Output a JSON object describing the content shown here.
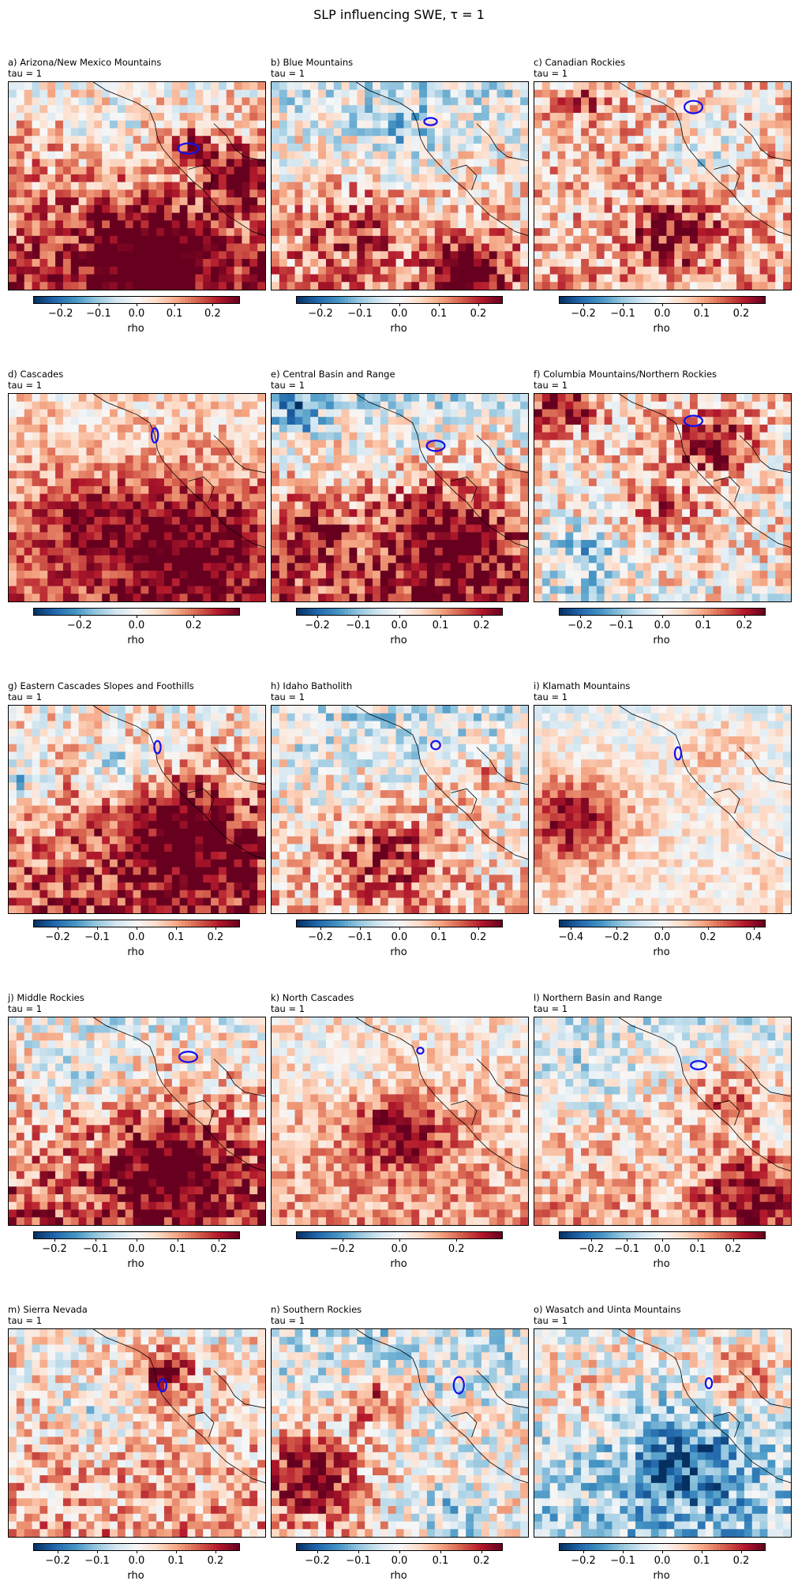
{
  "figure": {
    "title": "SLP influencing SWE, τ = 1"
  },
  "chart_data": [
    {
      "type": "heatmap",
      "title": "a) Arizona/New Mexico Mountains",
      "subtitle": "tau = 1",
      "colorbar": {
        "label": "rho",
        "cmap": "RdBu_r",
        "vmin": -0.27,
        "vmax": 0.27,
        "ticks": [
          -0.2,
          -0.1,
          0.0,
          0.1,
          0.2
        ],
        "tick_labels": [
          "−0.2",
          "−0.1",
          "0.0",
          "0.1",
          "0.2"
        ]
      },
      "field": {
        "nx": 33,
        "ny": 27,
        "seed": 11,
        "bias": 0.1,
        "north_bias": -0.08,
        "south_bias": 0.12,
        "blobs": [
          {
            "cx": 0.55,
            "cy": 0.85,
            "r": 0.22,
            "v": 0.22
          },
          {
            "cx": 0.9,
            "cy": 0.45,
            "r": 0.12,
            "v": 0.22
          },
          {
            "cx": 0.7,
            "cy": 0.3,
            "r": 0.1,
            "v": 0.12
          },
          {
            "cx": 0.4,
            "cy": 0.25,
            "r": 0.15,
            "v": -0.08
          }
        ]
      },
      "region_outline": {
        "cx": 0.7,
        "cy": 0.32,
        "w": 0.08,
        "h": 0.05
      }
    },
    {
      "type": "heatmap",
      "title": "b) Blue Mountains",
      "subtitle": "tau = 1",
      "colorbar": {
        "label": "rho",
        "cmap": "RdBu_r",
        "vmin": -0.26,
        "vmax": 0.26,
        "ticks": [
          -0.2,
          -0.1,
          0.0,
          0.1,
          0.2
        ],
        "tick_labels": [
          "−0.2",
          "−0.1",
          "0.0",
          "0.1",
          "0.2"
        ]
      },
      "field": {
        "nx": 33,
        "ny": 27,
        "seed": 23,
        "bias": 0.02,
        "north_bias": -0.06,
        "south_bias": 0.1,
        "blobs": [
          {
            "cx": 0.77,
            "cy": 0.9,
            "r": 0.14,
            "v": 0.24
          },
          {
            "cx": 0.3,
            "cy": 0.7,
            "r": 0.2,
            "v": 0.1
          },
          {
            "cx": 0.5,
            "cy": 0.25,
            "r": 0.15,
            "v": -0.08
          }
        ]
      },
      "region_outline": {
        "cx": 0.62,
        "cy": 0.19,
        "w": 0.05,
        "h": 0.035
      }
    },
    {
      "type": "heatmap",
      "title": "c) Canadian Rockies",
      "subtitle": "tau = 1",
      "colorbar": {
        "label": "rho",
        "cmap": "RdBu_r",
        "vmin": -0.26,
        "vmax": 0.26,
        "ticks": [
          -0.2,
          -0.1,
          0.0,
          0.1,
          0.2
        ],
        "tick_labels": [
          "−0.2",
          "−0.1",
          "0.0",
          "0.1",
          "0.2"
        ]
      },
      "field": {
        "nx": 33,
        "ny": 27,
        "seed": 37,
        "bias": 0.01,
        "north_bias": 0.04,
        "south_bias": 0.08,
        "blobs": [
          {
            "cx": 0.55,
            "cy": 0.72,
            "r": 0.18,
            "v": 0.14
          },
          {
            "cx": 0.65,
            "cy": 0.35,
            "r": 0.15,
            "v": -0.1
          },
          {
            "cx": 0.2,
            "cy": 0.1,
            "r": 0.12,
            "v": 0.1
          }
        ]
      },
      "region_outline": {
        "cx": 0.62,
        "cy": 0.12,
        "w": 0.07,
        "h": 0.06
      }
    },
    {
      "type": "heatmap",
      "title": "d) Cascades",
      "subtitle": "tau = 1",
      "colorbar": {
        "label": "rho",
        "cmap": "RdBu_r",
        "vmin": -0.36,
        "vmax": 0.36,
        "ticks": [
          -0.2,
          0.0,
          0.2
        ],
        "tick_labels": [
          "−0.2",
          "0.0",
          "0.2"
        ]
      },
      "field": {
        "nx": 33,
        "ny": 27,
        "seed": 41,
        "bias": 0.07,
        "north_bias": -0.02,
        "south_bias": 0.16,
        "blobs": [
          {
            "cx": 0.7,
            "cy": 0.72,
            "r": 0.3,
            "v": 0.22
          },
          {
            "cx": 0.3,
            "cy": 0.6,
            "r": 0.2,
            "v": 0.14
          }
        ]
      },
      "region_outline": {
        "cx": 0.57,
        "cy": 0.2,
        "w": 0.025,
        "h": 0.07
      }
    },
    {
      "type": "heatmap",
      "title": "e) Central Basin and Range",
      "subtitle": "tau = 1",
      "colorbar": {
        "label": "rho",
        "cmap": "RdBu_r",
        "vmin": -0.25,
        "vmax": 0.25,
        "ticks": [
          -0.2,
          -0.1,
          0.0,
          0.1,
          0.2
        ],
        "tick_labels": [
          "−0.2",
          "−0.1",
          "0.0",
          "0.1",
          "0.2"
        ]
      },
      "field": {
        "nx": 33,
        "ny": 27,
        "seed": 53,
        "bias": 0.04,
        "north_bias": -0.08,
        "south_bias": 0.14,
        "blobs": [
          {
            "cx": 0.7,
            "cy": 0.68,
            "r": 0.25,
            "v": 0.18
          },
          {
            "cx": 0.15,
            "cy": 0.65,
            "r": 0.15,
            "v": 0.12
          },
          {
            "cx": 0.1,
            "cy": 0.1,
            "r": 0.1,
            "v": -0.14
          }
        ]
      },
      "region_outline": {
        "cx": 0.64,
        "cy": 0.25,
        "w": 0.07,
        "h": 0.05
      }
    },
    {
      "type": "heatmap",
      "title": "f) Columbia Mountains/Northern Rockies",
      "subtitle": "tau = 1",
      "colorbar": {
        "label": "rho",
        "cmap": "RdBu_r",
        "vmin": -0.25,
        "vmax": 0.25,
        "ticks": [
          -0.2,
          -0.1,
          0.0,
          0.1,
          0.2
        ],
        "tick_labels": [
          "−0.2",
          "−0.1",
          "0.0",
          "0.1",
          "0.2"
        ]
      },
      "field": {
        "nx": 33,
        "ny": 27,
        "seed": 67,
        "bias": 0.0,
        "north_bias": 0.06,
        "south_bias": 0.02,
        "blobs": [
          {
            "cx": 0.1,
            "cy": 0.05,
            "r": 0.12,
            "v": 0.22
          },
          {
            "cx": 0.7,
            "cy": 0.25,
            "r": 0.15,
            "v": 0.18
          },
          {
            "cx": 0.5,
            "cy": 0.55,
            "r": 0.15,
            "v": 0.1
          },
          {
            "cx": 0.2,
            "cy": 0.8,
            "r": 0.18,
            "v": -0.12
          }
        ]
      },
      "region_outline": {
        "cx": 0.62,
        "cy": 0.13,
        "w": 0.07,
        "h": 0.05
      }
    },
    {
      "type": "heatmap",
      "title": "g) Eastern Cascades Slopes and Foothills",
      "subtitle": "tau = 1",
      "colorbar": {
        "label": "rho",
        "cmap": "RdBu_r",
        "vmin": -0.26,
        "vmax": 0.26,
        "ticks": [
          -0.2,
          -0.1,
          0.0,
          0.1,
          0.2
        ],
        "tick_labels": [
          "−0.2",
          "−0.1",
          "0.0",
          "0.1",
          "0.2"
        ]
      },
      "field": {
        "nx": 33,
        "ny": 27,
        "seed": 79,
        "bias": 0.06,
        "north_bias": -0.04,
        "south_bias": 0.12,
        "blobs": [
          {
            "cx": 0.7,
            "cy": 0.65,
            "r": 0.28,
            "v": 0.2
          },
          {
            "cx": 0.45,
            "cy": 0.3,
            "r": 0.12,
            "v": -0.14
          },
          {
            "cx": 0.05,
            "cy": 0.35,
            "r": 0.1,
            "v": -0.14
          }
        ]
      },
      "region_outline": {
        "cx": 0.58,
        "cy": 0.2,
        "w": 0.025,
        "h": 0.06
      }
    },
    {
      "type": "heatmap",
      "title": "h) Idaho Batholith",
      "subtitle": "tau = 1",
      "colorbar": {
        "label": "rho",
        "cmap": "RdBu_r",
        "vmin": -0.26,
        "vmax": 0.26,
        "ticks": [
          -0.2,
          -0.1,
          0.0,
          0.1,
          0.2
        ],
        "tick_labels": [
          "−0.2",
          "−0.1",
          "0.0",
          "0.1",
          "0.2"
        ]
      },
      "field": {
        "nx": 33,
        "ny": 27,
        "seed": 83,
        "bias": 0.01,
        "north_bias": -0.05,
        "south_bias": 0.06,
        "blobs": [
          {
            "cx": 0.45,
            "cy": 0.72,
            "r": 0.22,
            "v": 0.16
          },
          {
            "cx": 0.8,
            "cy": 0.35,
            "r": 0.12,
            "v": 0.12
          }
        ]
      },
      "region_outline": {
        "cx": 0.64,
        "cy": 0.19,
        "w": 0.035,
        "h": 0.04
      }
    },
    {
      "type": "heatmap",
      "title": "i) Klamath Mountains",
      "subtitle": "tau = 1",
      "colorbar": {
        "label": "rho",
        "cmap": "RdBu_r",
        "vmin": -0.45,
        "vmax": 0.45,
        "ticks": [
          -0.4,
          -0.2,
          0.0,
          0.2,
          0.4
        ],
        "tick_labels": [
          "−0.4",
          "−0.2",
          "0.0",
          "0.2",
          "0.4"
        ]
      },
      "field": {
        "nx": 33,
        "ny": 27,
        "seed": 97,
        "bias": 0.02,
        "north_bias": -0.04,
        "south_bias": 0.04,
        "blobs": [
          {
            "cx": 0.15,
            "cy": 0.55,
            "r": 0.22,
            "v": 0.38
          },
          {
            "cx": 0.7,
            "cy": 0.2,
            "r": 0.15,
            "v": 0.12
          }
        ]
      },
      "region_outline": {
        "cx": 0.56,
        "cy": 0.23,
        "w": 0.025,
        "h": 0.06
      }
    },
    {
      "type": "heatmap",
      "title": "j) Middle Rockies",
      "subtitle": "tau = 1",
      "colorbar": {
        "label": "rho",
        "cmap": "RdBu_r",
        "vmin": -0.25,
        "vmax": 0.25,
        "ticks": [
          -0.2,
          -0.1,
          0.0,
          0.1,
          0.2
        ],
        "tick_labels": [
          "−0.2",
          "−0.1",
          "0.0",
          "0.1",
          "0.2"
        ]
      },
      "field": {
        "nx": 33,
        "ny": 27,
        "seed": 101,
        "bias": 0.05,
        "north_bias": -0.06,
        "south_bias": 0.12,
        "blobs": [
          {
            "cx": 0.65,
            "cy": 0.72,
            "r": 0.25,
            "v": 0.2
          },
          {
            "cx": 0.3,
            "cy": 0.3,
            "r": 0.15,
            "v": -0.06
          }
        ]
      },
      "region_outline": {
        "cx": 0.7,
        "cy": 0.19,
        "w": 0.07,
        "h": 0.05
      }
    },
    {
      "type": "heatmap",
      "title": "k) North Cascades",
      "subtitle": "tau = 1",
      "colorbar": {
        "label": "rho",
        "cmap": "RdBu_r",
        "vmin": -0.36,
        "vmax": 0.36,
        "ticks": [
          -0.2,
          0.0,
          0.2
        ],
        "tick_labels": [
          "−0.2",
          "0.0",
          "0.2"
        ]
      },
      "field": {
        "nx": 33,
        "ny": 27,
        "seed": 113,
        "bias": 0.05,
        "north_bias": -0.02,
        "south_bias": 0.1,
        "blobs": [
          {
            "cx": 0.5,
            "cy": 0.55,
            "r": 0.2,
            "v": 0.24
          },
          {
            "cx": 0.3,
            "cy": 0.25,
            "r": 0.15,
            "v": -0.08
          }
        ]
      },
      "region_outline": {
        "cx": 0.58,
        "cy": 0.16,
        "w": 0.025,
        "h": 0.03
      }
    },
    {
      "type": "heatmap",
      "title": "l) Northern Basin and Range",
      "subtitle": "tau = 1",
      "colorbar": {
        "label": "rho",
        "cmap": "RdBu_r",
        "vmin": -0.29,
        "vmax": 0.29,
        "ticks": [
          -0.2,
          -0.1,
          0.0,
          0.1,
          0.2
        ],
        "tick_labels": [
          "−0.2",
          "−0.1",
          "0.0",
          "0.1",
          "0.2"
        ]
      },
      "field": {
        "nx": 33,
        "ny": 27,
        "seed": 127,
        "bias": 0.03,
        "north_bias": -0.06,
        "south_bias": 0.08,
        "blobs": [
          {
            "cx": 0.85,
            "cy": 0.85,
            "r": 0.18,
            "v": 0.2
          },
          {
            "cx": 0.75,
            "cy": 0.4,
            "r": 0.15,
            "v": 0.14
          },
          {
            "cx": 0.2,
            "cy": 0.3,
            "r": 0.15,
            "v": -0.08
          }
        ]
      },
      "region_outline": {
        "cx": 0.64,
        "cy": 0.23,
        "w": 0.06,
        "h": 0.04
      }
    },
    {
      "type": "heatmap",
      "title": "m) Sierra Nevada",
      "subtitle": "tau = 1",
      "colorbar": {
        "label": "rho",
        "cmap": "RdBu_r",
        "vmin": -0.26,
        "vmax": 0.26,
        "ticks": [
          -0.2,
          -0.1,
          0.0,
          0.1,
          0.2
        ],
        "tick_labels": [
          "−0.2",
          "−0.1",
          "0.0",
          "0.1",
          "0.2"
        ]
      },
      "field": {
        "nx": 33,
        "ny": 27,
        "seed": 131,
        "bias": 0.04,
        "north_bias": -0.02,
        "south_bias": 0.06,
        "blobs": [
          {
            "cx": 0.62,
            "cy": 0.2,
            "r": 0.1,
            "v": 0.22
          },
          {
            "cx": 0.3,
            "cy": 0.4,
            "r": 0.12,
            "v": -0.1
          }
        ]
      },
      "region_outline": {
        "cx": 0.6,
        "cy": 0.27,
        "w": 0.03,
        "h": 0.06
      }
    },
    {
      "type": "heatmap",
      "title": "n) Southern Rockies",
      "subtitle": "tau = 1",
      "colorbar": {
        "label": "rho",
        "cmap": "RdBu_r",
        "vmin": -0.25,
        "vmax": 0.25,
        "ticks": [
          -0.2,
          -0.1,
          0.0,
          0.1,
          0.2
        ],
        "tick_labels": [
          "−0.2",
          "−0.1",
          "0.0",
          "0.1",
          "0.2"
        ]
      },
      "field": {
        "nx": 33,
        "ny": 27,
        "seed": 149,
        "bias": 0.02,
        "north_bias": -0.06,
        "south_bias": 0.02,
        "blobs": [
          {
            "cx": 0.15,
            "cy": 0.72,
            "r": 0.2,
            "v": 0.24
          },
          {
            "cx": 0.4,
            "cy": 0.35,
            "r": 0.12,
            "v": 0.18
          },
          {
            "cx": 0.7,
            "cy": 0.92,
            "r": 0.18,
            "v": -0.1
          }
        ]
      },
      "region_outline": {
        "cx": 0.73,
        "cy": 0.27,
        "w": 0.04,
        "h": 0.08
      }
    },
    {
      "type": "heatmap",
      "title": "o) Wasatch and Uinta Mountains",
      "subtitle": "tau = 1",
      "colorbar": {
        "label": "rho",
        "cmap": "RdBu_r",
        "vmin": -0.26,
        "vmax": 0.26,
        "ticks": [
          -0.2,
          -0.1,
          0.0,
          0.1,
          0.2
        ],
        "tick_labels": [
          "−0.2",
          "−0.1",
          "0.0",
          "0.1",
          "0.2"
        ]
      },
      "field": {
        "nx": 33,
        "ny": 27,
        "seed": 157,
        "bias": -0.01,
        "north_bias": 0.02,
        "south_bias": -0.06,
        "blobs": [
          {
            "cx": 0.6,
            "cy": 0.65,
            "r": 0.25,
            "v": -0.16
          },
          {
            "cx": 0.8,
            "cy": 0.25,
            "r": 0.15,
            "v": 0.12
          },
          {
            "cx": 0.15,
            "cy": 0.3,
            "r": 0.15,
            "v": 0.08
          }
        ]
      },
      "region_outline": {
        "cx": 0.68,
        "cy": 0.26,
        "w": 0.025,
        "h": 0.05
      }
    }
  ]
}
